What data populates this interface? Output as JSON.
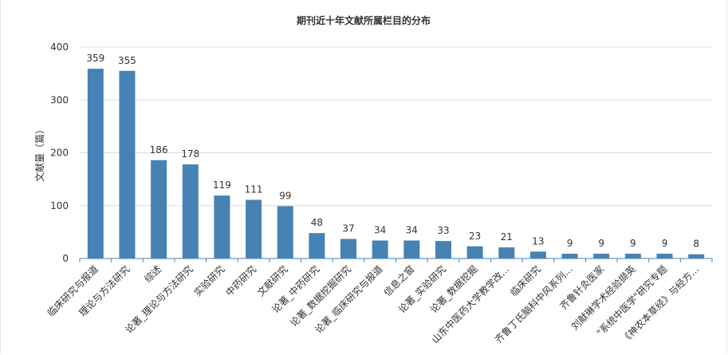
{
  "chart_data": {
    "type": "bar",
    "title": "期刊近十年文献所属栏目的分布",
    "ylabel": "文献量（篇）",
    "xlabel": "",
    "ylim": [
      0,
      400
    ],
    "yticks": [
      0,
      100,
      200,
      300,
      400
    ],
    "grid": true,
    "bar_color": "#4682B4",
    "categories": [
      "临床研究与报道",
      "理论与方法研究",
      "综述",
      "论著_理论与方法研究",
      "实验研究",
      "中药研究",
      "文献研究",
      "论著_中药研究",
      "论著_数据挖掘研究",
      "论著_临床研究与报道",
      "信息之窗",
      "论著_实验研究",
      "论著_数据挖掘",
      "山东中医药大学教学改...",
      "临床研究",
      "齐鲁丁氏脑科中风系列...",
      "齐鲁针灸医家",
      "刘献琳学术经验撷英",
      "\"系统中医学\"研究专题",
      "《神农本草经》与经方..."
    ],
    "values": [
      359,
      355,
      186,
      178,
      119,
      111,
      99,
      48,
      37,
      34,
      34,
      33,
      23,
      21,
      13,
      9,
      9,
      9,
      9,
      8
    ]
  }
}
